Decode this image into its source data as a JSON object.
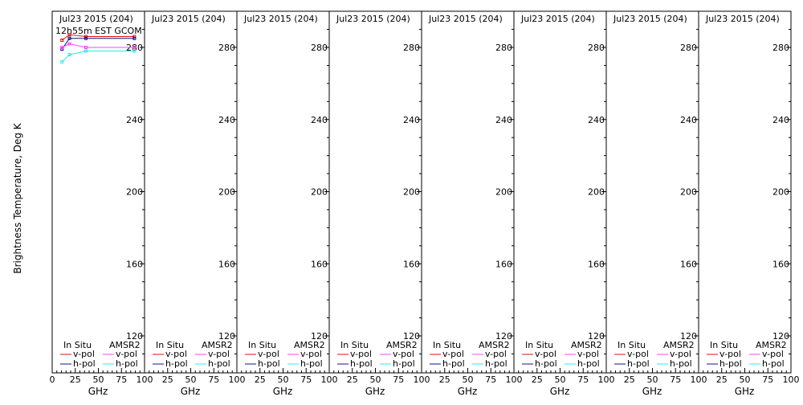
{
  "figure": {
    "ylabel": "Brightness Temperature, Deg K",
    "colors": {
      "insitu_v": "#e01010",
      "insitu_h": "#10108a",
      "amsr2_v": "#ff44ff",
      "amsr2_h": "#33e8e8"
    }
  },
  "chart_data": [
    {
      "type": "line",
      "title": "Jul23 2015 (204)",
      "subtitle": "12h55m EST GCOM",
      "xlabel": "GHz",
      "ylabel": "Brightness Temperature, Deg K",
      "xlim": [
        0,
        100
      ],
      "ylim": [
        108,
        293
      ],
      "xticks": [
        0,
        25,
        50,
        75,
        100
      ],
      "yticks": [
        120,
        160,
        200,
        240,
        280
      ],
      "legend": {
        "left_header": "In Situ",
        "right_header": "AMSR2",
        "v_label": "v-pol",
        "h_label": "h-pol"
      },
      "series": [
        {
          "name": "In Situ v-pol",
          "color": "#e01010",
          "x": [
            10.65,
            18.7,
            36.5,
            89.0
          ],
          "y": [
            284,
            287,
            286,
            286
          ]
        },
        {
          "name": "In Situ h-pol",
          "color": "#10108a",
          "x": [
            10.65,
            18.7,
            36.5,
            89.0
          ],
          "y": [
            279,
            285,
            285,
            285
          ]
        },
        {
          "name": "AMSR2 v-pol",
          "color": "#ff44ff",
          "x": [
            10.65,
            18.7,
            36.5,
            89.0
          ],
          "y": [
            280,
            282,
            280,
            280
          ]
        },
        {
          "name": "AMSR2 h-pol",
          "color": "#33e8e8",
          "x": [
            10.65,
            18.7,
            36.5,
            89.0
          ],
          "y": [
            272,
            276,
            278,
            278
          ]
        }
      ]
    },
    {
      "type": "line",
      "title": "Jul23 2015 (204)",
      "xlabel": "GHz",
      "xlim": [
        0,
        100
      ],
      "ylim": [
        108,
        293
      ],
      "xticks": [
        0,
        25,
        50,
        75,
        100
      ],
      "yticks": [
        120,
        160,
        200,
        240,
        280
      ],
      "legend": {
        "left_header": "In Situ",
        "right_header": "AMSR2",
        "v_label": "v-pol",
        "h_label": "h-pol"
      },
      "series": []
    },
    {
      "type": "line",
      "title": "Jul23 2015 (204)",
      "xlabel": "GHz",
      "xlim": [
        0,
        100
      ],
      "ylim": [
        108,
        293
      ],
      "xticks": [
        0,
        25,
        50,
        75,
        100
      ],
      "yticks": [
        120,
        160,
        200,
        240,
        280
      ],
      "legend": {
        "left_header": "In Situ",
        "right_header": "AMSR2",
        "v_label": "v-pol",
        "h_label": "h-pol"
      },
      "series": []
    },
    {
      "type": "line",
      "title": "Jul23 2015 (204)",
      "xlabel": "GHz",
      "xlim": [
        0,
        100
      ],
      "ylim": [
        108,
        293
      ],
      "xticks": [
        0,
        25,
        50,
        75,
        100
      ],
      "yticks": [
        120,
        160,
        200,
        240,
        280
      ],
      "legend": {
        "left_header": "In Situ",
        "right_header": "AMSR2",
        "v_label": "v-pol",
        "h_label": "h-pol"
      },
      "series": []
    },
    {
      "type": "line",
      "title": "Jul23 2015 (204)",
      "xlabel": "GHz",
      "xlim": [
        0,
        100
      ],
      "ylim": [
        108,
        293
      ],
      "xticks": [
        0,
        25,
        50,
        75,
        100
      ],
      "yticks": [
        120,
        160,
        200,
        240,
        280
      ],
      "legend": {
        "left_header": "In Situ",
        "right_header": "AMSR2",
        "v_label": "v-pol",
        "h_label": "h-pol"
      },
      "series": []
    },
    {
      "type": "line",
      "title": "Jul23 2015 (204)",
      "xlabel": "GHz",
      "xlim": [
        0,
        100
      ],
      "ylim": [
        108,
        293
      ],
      "xticks": [
        0,
        25,
        50,
        75,
        100
      ],
      "yticks": [
        120,
        160,
        200,
        240,
        280
      ],
      "legend": {
        "left_header": "In Situ",
        "right_header": "AMSR2",
        "v_label": "v-pol",
        "h_label": "h-pol"
      },
      "series": []
    },
    {
      "type": "line",
      "title": "Jul23 2015 (204)",
      "xlabel": "GHz",
      "xlim": [
        0,
        100
      ],
      "ylim": [
        108,
        293
      ],
      "xticks": [
        0,
        25,
        50,
        75,
        100
      ],
      "yticks": [
        120,
        160,
        200,
        240,
        280
      ],
      "legend": {
        "left_header": "In Situ",
        "right_header": "AMSR2",
        "v_label": "v-pol",
        "h_label": "h-pol"
      },
      "series": []
    },
    {
      "type": "line",
      "title": "Jul23 2015 (204)",
      "xlabel": "GHz",
      "xlim": [
        0,
        100
      ],
      "ylim": [
        108,
        293
      ],
      "xticks": [
        0,
        25,
        50,
        75,
        100
      ],
      "yticks": [
        120,
        160,
        200,
        240,
        280
      ],
      "legend": {
        "left_header": "In Situ",
        "right_header": "AMSR2",
        "v_label": "v-pol",
        "h_label": "h-pol"
      },
      "series": []
    }
  ]
}
